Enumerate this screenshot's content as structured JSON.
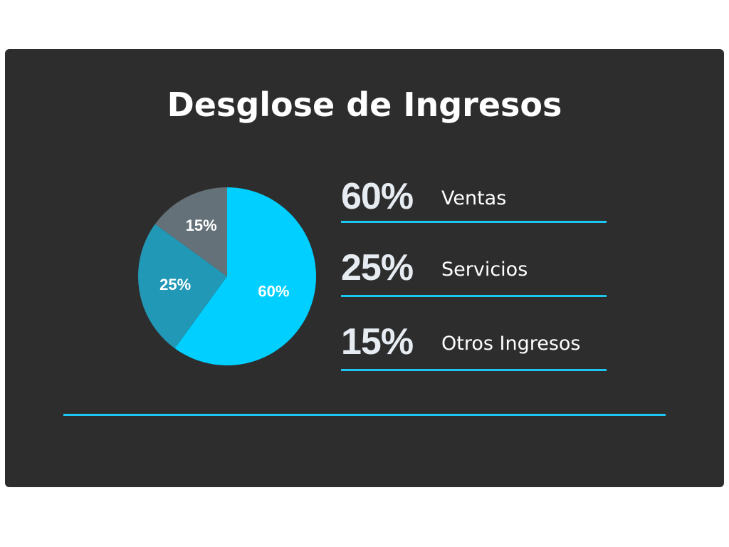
{
  "chart_data": {
    "type": "pie",
    "title": "Desglose de Ingresos",
    "slices": [
      {
        "label": "Ventas",
        "value": 60,
        "display": "60%",
        "color": "#00cfff"
      },
      {
        "label": "Servicios",
        "value": 25,
        "display": "25%",
        "color": "#2198b6"
      },
      {
        "label": "Otros Ingresos",
        "value": 15,
        "display": "15%",
        "color": "#647178"
      }
    ],
    "legend_position": "right"
  },
  "colors": {
    "background": "#2d2d2d",
    "accent_line": "#1cc6f0"
  }
}
